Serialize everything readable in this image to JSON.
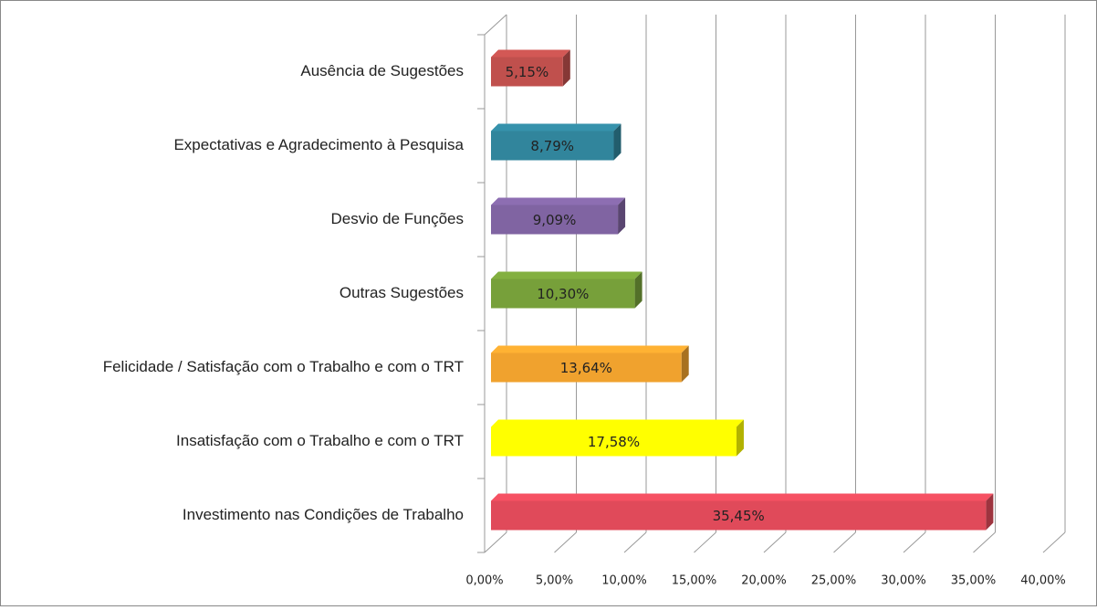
{
  "chart_data": {
    "type": "bar",
    "orientation": "horizontal",
    "categories": [
      "Ausência de Sugestões",
      "Expectativas e Agradecimento à Pesquisa",
      "Desvio de Funções",
      "Outras Sugestões",
      "Felicidade / Satisfação com o Trabalho e com o TRT",
      "Insatisfação com o Trabalho e com o TRT",
      "Investimento nas Condições de Trabalho"
    ],
    "values": [
      5.15,
      8.79,
      9.09,
      10.3,
      13.64,
      17.58,
      35.45
    ],
    "value_labels": [
      "5,15%",
      "8,79%",
      "9,09%",
      "10,30%",
      "13,64%",
      "17,58%",
      "35,45%"
    ],
    "colors": [
      "#c0504d",
      "#31859c",
      "#8064a2",
      "#77a03a",
      "#f0a22e",
      "#ffff00",
      "#e04a5a"
    ],
    "xlim": [
      0,
      40
    ],
    "xticks": [
      {
        "value": 0,
        "label": "0,00%"
      },
      {
        "value": 5,
        "label": "5,00%"
      },
      {
        "value": 10,
        "label": "10,00%"
      },
      {
        "value": 15,
        "label": "15,00%"
      },
      {
        "value": 20,
        "label": "20,00%"
      },
      {
        "value": 25,
        "label": "25,00%"
      },
      {
        "value": 30,
        "label": "30,00%"
      },
      {
        "value": 35,
        "label": "35,00%"
      },
      {
        "value": 40,
        "label": "40,00%"
      }
    ],
    "grid": true
  }
}
